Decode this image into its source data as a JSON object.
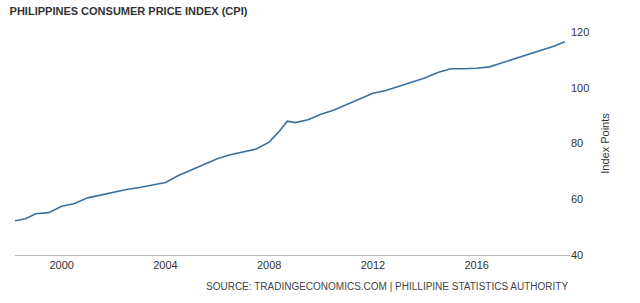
{
  "chart_data": {
    "type": "line",
    "title": "PHILIPPINES CONSUMER PRICE INDEX (CPI)",
    "y_label": "Index Points",
    "annotations": [
      "SOURCE: TRADINGECONOMICS.COM | PHILLIPINE STATISTICS AUTHORITY"
    ],
    "x": [
      1998.2,
      1998.6,
      1999.0,
      1999.5,
      2000.0,
      2000.5,
      2001.0,
      2001.5,
      2002.0,
      2002.5,
      2003.0,
      2003.5,
      2004.0,
      2004.5,
      2005.0,
      2005.5,
      2006.0,
      2006.5,
      2007.0,
      2007.5,
      2008.0,
      2008.4,
      2008.7,
      2009.0,
      2009.5,
      2010.0,
      2010.5,
      2011.0,
      2011.5,
      2012.0,
      2012.5,
      2013.0,
      2013.5,
      2014.0,
      2014.5,
      2015.0,
      2015.5,
      2016.0,
      2016.5,
      2017.0,
      2017.5,
      2018.0,
      2018.5,
      2019.0,
      2019.4
    ],
    "values": [
      52.3,
      53.0,
      54.8,
      55.2,
      57.5,
      58.5,
      60.5,
      61.5,
      62.5,
      63.5,
      64.2,
      65.0,
      66.0,
      68.5,
      70.5,
      72.5,
      74.5,
      76.0,
      77.0,
      78.0,
      80.5,
      84.5,
      88.0,
      87.5,
      88.5,
      90.5,
      92.0,
      94.0,
      96.0,
      98.0,
      99.0,
      100.5,
      102.0,
      103.5,
      105.5,
      106.8,
      106.8,
      107.0,
      107.5,
      109.0,
      110.5,
      112.0,
      113.5,
      115.0,
      116.5
    ],
    "color": "#3a6f9e",
    "xlim": [
      1998.2,
      2019.6
    ],
    "xticks": [
      2000,
      2004,
      2008,
      2012,
      2016
    ],
    "ylim": [
      40,
      120
    ],
    "yticks": [
      40,
      60,
      80,
      100,
      120
    ],
    "grid": false
  }
}
